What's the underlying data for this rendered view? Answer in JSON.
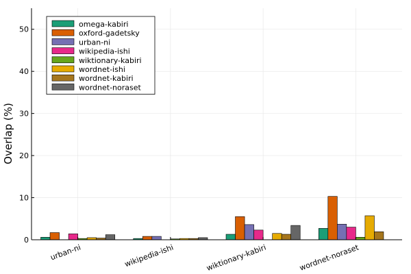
{
  "chart_data": {
    "type": "bar",
    "title": "",
    "xlabel": "",
    "ylabel": "Overlap (%)",
    "ylim": [
      0,
      55
    ],
    "yticks": [
      0,
      10,
      20,
      30,
      40,
      50
    ],
    "grid": true,
    "legend_position": "top-left",
    "categories": [
      "urban-ni",
      "wikipedia-ishi",
      "wiktionary-kabiri",
      "wordnet-noraset"
    ],
    "series": [
      {
        "name": "omega-kabiri",
        "color": "#1b9e77",
        "values": [
          0.6,
          0.3,
          1.3,
          2.7
        ]
      },
      {
        "name": "oxford-gadetsky",
        "color": "#d95f02",
        "values": [
          1.7,
          0.8,
          5.5,
          10.3
        ]
      },
      {
        "name": "urban-ni",
        "color": "#7570b3",
        "values": [
          0.0,
          0.8,
          3.6,
          3.7
        ]
      },
      {
        "name": "wikipedia-ishi",
        "color": "#e7298a",
        "values": [
          1.4,
          0.0,
          2.3,
          3.0
        ]
      },
      {
        "name": "wiktionary-kabiri",
        "color": "#66a61e",
        "values": [
          0.3,
          0.2,
          0.0,
          0.6
        ]
      },
      {
        "name": "wordnet-ishi",
        "color": "#e6ab02",
        "values": [
          0.5,
          0.3,
          1.5,
          5.7
        ]
      },
      {
        "name": "wordnet-kabiri",
        "color": "#a6761d",
        "values": [
          0.4,
          0.3,
          1.3,
          1.9
        ]
      },
      {
        "name": "wordnet-noraset",
        "color": "#666666",
        "values": [
          1.2,
          0.5,
          3.4,
          0.0
        ]
      }
    ]
  }
}
